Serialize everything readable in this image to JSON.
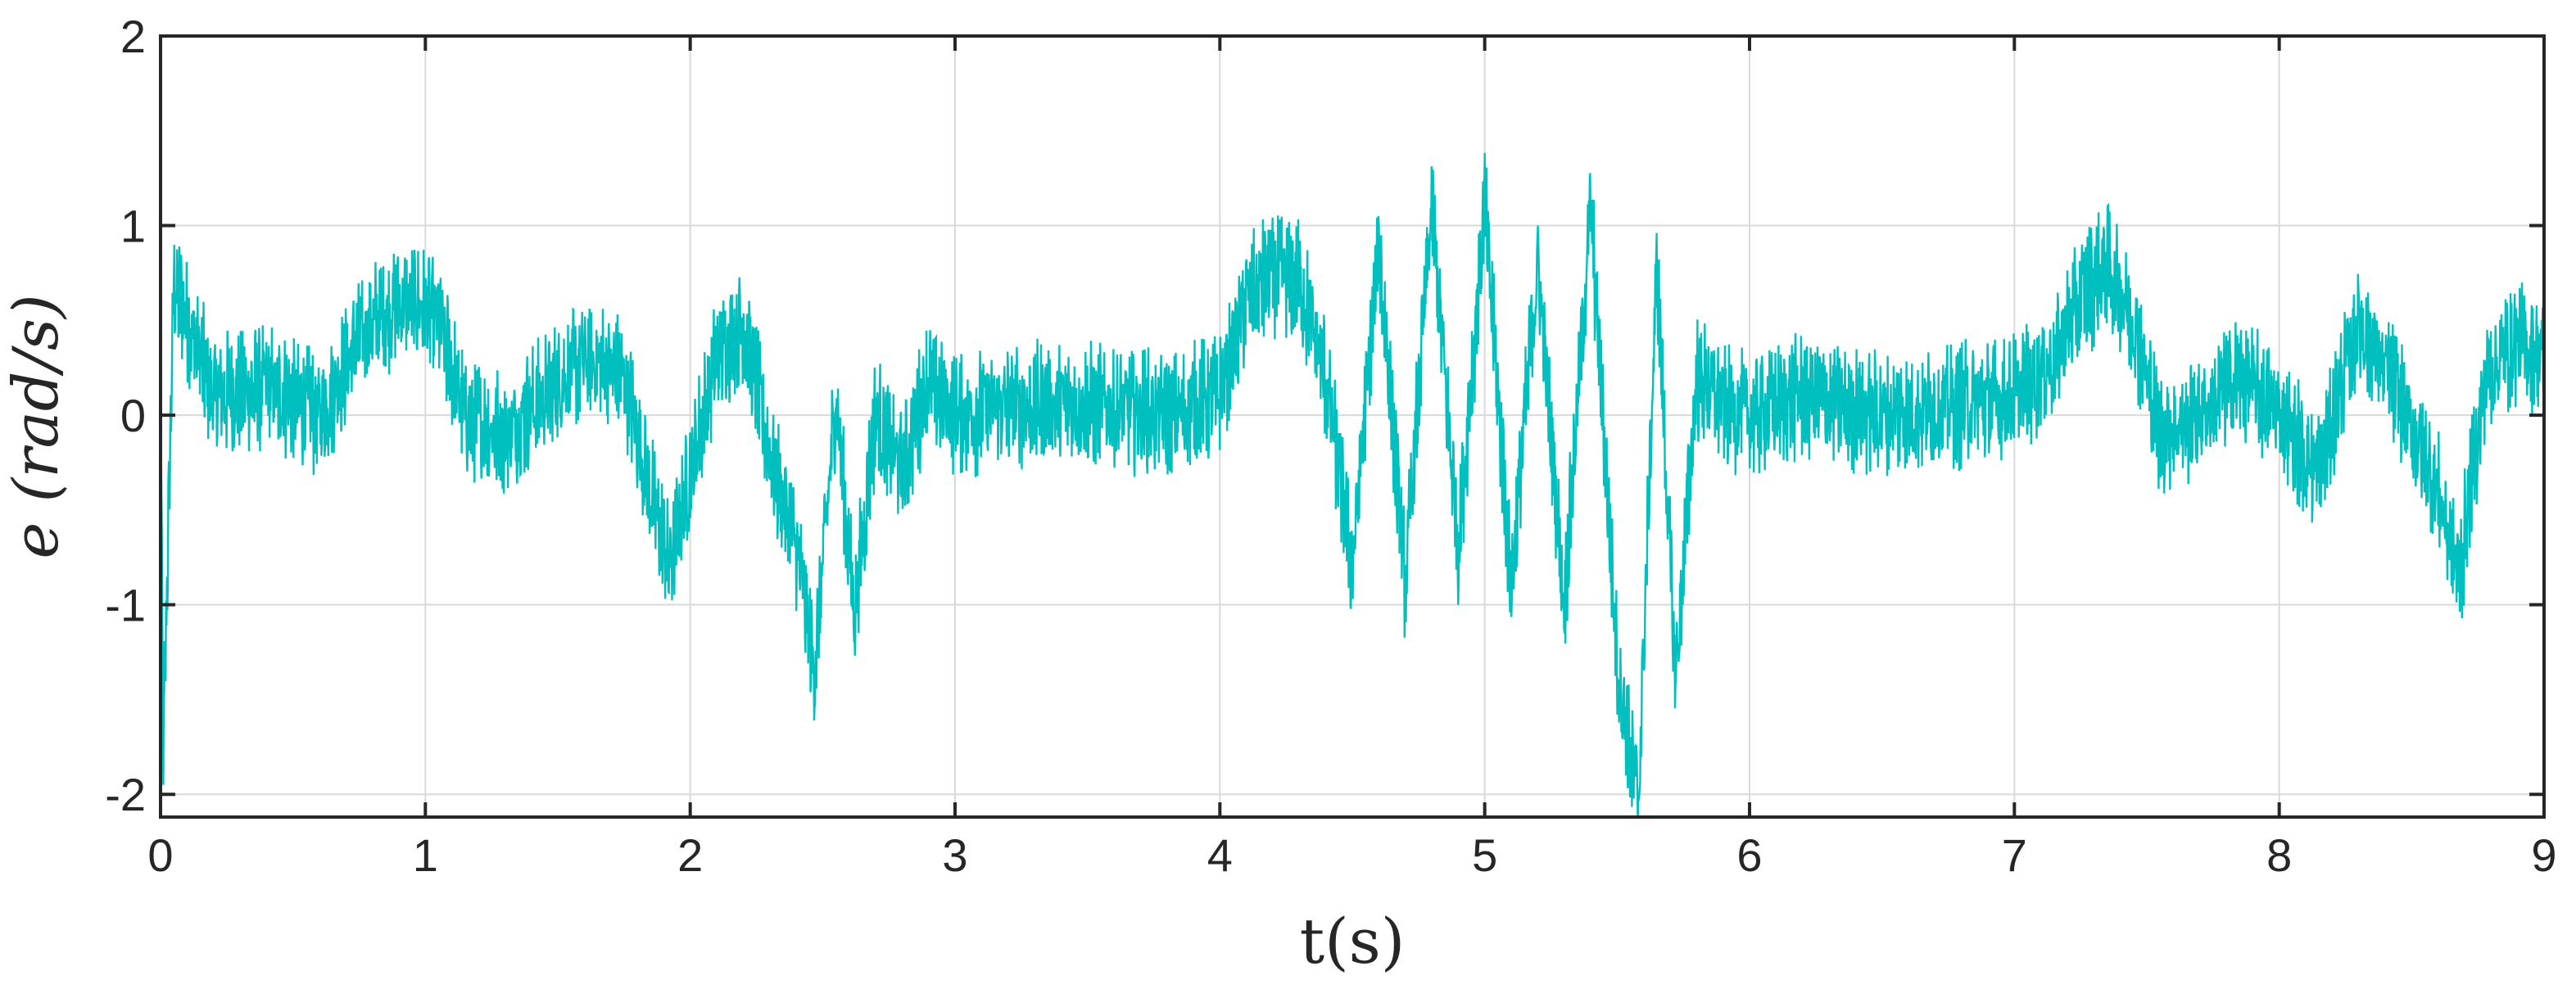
{
  "chart_data": {
    "type": "line",
    "xlabel": "t(s)",
    "ylabel": "e (rad/s)",
    "xlim": [
      0,
      9
    ],
    "ylim": [
      -2.12,
      2
    ],
    "xticks": [
      "0",
      "1",
      "2",
      "3",
      "4",
      "5",
      "6",
      "7",
      "8",
      "9"
    ],
    "yticks": [
      "2",
      "1",
      "0",
      "-1",
      "-2"
    ],
    "grid": true,
    "color": "#00BFBF",
    "series": [
      {
        "values_note": "",
        "x": [
          0,
          0.01,
          0.05,
          0.2,
          0.4,
          0.6,
          0.75,
          0.85,
          0.95,
          1.05,
          1.15,
          1.3,
          1.45,
          1.6,
          1.75,
          1.85,
          1.92,
          2.0,
          2.1,
          2.2,
          2.3,
          2.4,
          2.47,
          2.55,
          2.62,
          2.7,
          2.8,
          2.9,
          3.0,
          3.2,
          3.5,
          3.8,
          4.0,
          4.1,
          4.2,
          4.3,
          4.4,
          4.5,
          4.6,
          4.7,
          4.8,
          4.9,
          5.0,
          5.1,
          5.2,
          5.3,
          5.4,
          5.5,
          5.58,
          5.65,
          5.72,
          5.8,
          5.9,
          6.0,
          6.2,
          6.5,
          6.8,
          7.0,
          7.15,
          7.25,
          7.35,
          7.45,
          7.55,
          7.7,
          7.85,
          8.0,
          8.15,
          8.3,
          8.45,
          8.6,
          8.68,
          8.78,
          8.9,
          9.0
        ],
        "y": [
          0.2,
          -1.8,
          0.7,
          0.1,
          0.15,
          0.0,
          0.4,
          0.55,
          0.6,
          0.5,
          0.0,
          -0.1,
          0.1,
          0.3,
          0.2,
          -0.4,
          -0.8,
          -0.3,
          0.3,
          0.5,
          -0.2,
          -0.7,
          -1.35,
          0.1,
          -1.05,
          0.0,
          -0.3,
          0.2,
          0.0,
          0.05,
          0.05,
          0.0,
          0.1,
          0.6,
          0.75,
          0.7,
          0.2,
          -0.8,
          0.9,
          -0.9,
          1.1,
          -0.7,
          1.1,
          -0.9,
          0.8,
          -1.0,
          1.1,
          -1.3,
          -2.05,
          0.8,
          -1.4,
          0.2,
          0.05,
          0.0,
          0.1,
          0.0,
          0.05,
          0.1,
          0.3,
          0.6,
          0.8,
          0.5,
          -0.1,
          0.0,
          0.2,
          0.0,
          -0.3,
          0.5,
          0.1,
          -0.4,
          -0.85,
          0.2,
          0.4,
          0.3
        ]
      }
    ]
  }
}
